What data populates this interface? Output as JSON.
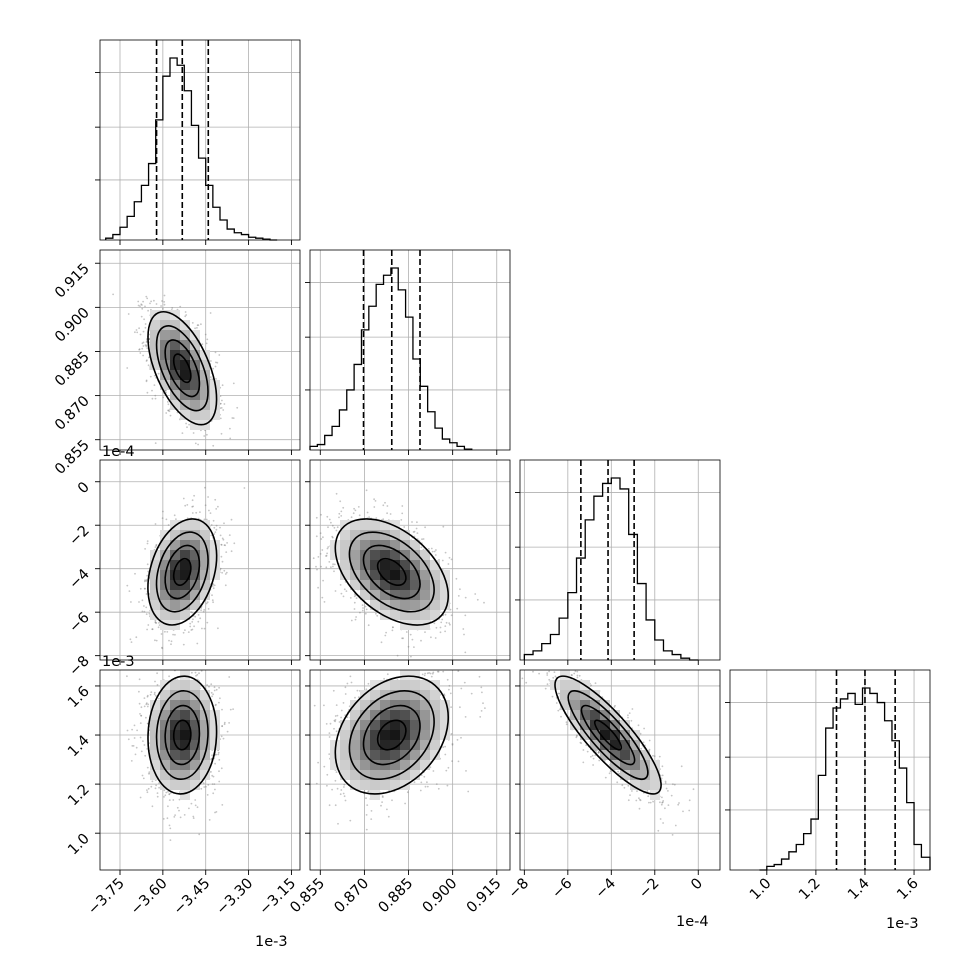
{
  "chart_data": {
    "type": "corner",
    "parameters": [
      {
        "index": 0,
        "axis_offset_text": "1e-3",
        "range": [
          -3.82,
          -3.12
        ],
        "ticks": [
          -3.75,
          -3.6,
          -3.45,
          -3.3,
          -3.15
        ],
        "tick_labels": [
          "−3.75",
          "−3.60",
          "−3.45",
          "−3.30",
          "−3.15"
        ],
        "quantiles": [
          -3.622,
          -3.532,
          -3.441
        ],
        "histogram": {
          "bin_edges": [
            -3.8,
            -3.775,
            -3.75,
            -3.725,
            -3.7,
            -3.675,
            -3.65,
            -3.625,
            -3.6,
            -3.575,
            -3.55,
            -3.525,
            -3.5,
            -3.475,
            -3.45,
            -3.425,
            -3.4,
            -3.375,
            -3.35,
            -3.325,
            -3.3,
            -3.275,
            -3.25,
            -3.225,
            -3.2
          ],
          "counts": [
            0.01,
            0.03,
            0.07,
            0.13,
            0.21,
            0.3,
            0.42,
            0.66,
            0.9,
            1.0,
            0.96,
            0.82,
            0.63,
            0.45,
            0.3,
            0.18,
            0.11,
            0.06,
            0.04,
            0.03,
            0.015,
            0.01,
            0.005,
            0.0
          ]
        }
      },
      {
        "index": 1,
        "axis_offset_text": "",
        "range": [
          0.8515,
          0.9195
        ],
        "ticks": [
          0.855,
          0.87,
          0.885,
          0.9,
          0.915
        ],
        "tick_labels": [
          "0.855",
          "0.870",
          "0.885",
          "0.900",
          "0.915"
        ],
        "quantiles": [
          0.8697,
          0.8793,
          0.8889
        ],
        "histogram": {
          "bin_edges": [
            0.8515,
            0.854,
            0.8565,
            0.859,
            0.8615,
            0.864,
            0.8665,
            0.869,
            0.8715,
            0.874,
            0.8765,
            0.879,
            0.8815,
            0.884,
            0.8865,
            0.889,
            0.8915,
            0.894,
            0.8965,
            0.899,
            0.9015,
            0.904,
            0.9065
          ],
          "counts": [
            0.02,
            0.03,
            0.08,
            0.13,
            0.22,
            0.33,
            0.47,
            0.66,
            0.79,
            0.91,
            0.96,
            1.0,
            0.88,
            0.73,
            0.5,
            0.35,
            0.21,
            0.12,
            0.06,
            0.04,
            0.02,
            0.005
          ]
        }
      },
      {
        "index": 2,
        "axis_offset_text": "1e-4",
        "range": [
          -8.2,
          1.0
        ],
        "ticks": [
          -8,
          -6,
          -4,
          -2,
          0
        ],
        "tick_labels": [
          "−8",
          "−6",
          "−4",
          "−2",
          "0"
        ],
        "quantiles": [
          -5.4,
          -4.15,
          -2.95
        ],
        "histogram": {
          "bin_edges": [
            -8.0,
            -7.6,
            -7.2,
            -6.8,
            -6.4,
            -6.0,
            -5.6,
            -5.2,
            -4.8,
            -4.4,
            -4.0,
            -3.6,
            -3.2,
            -2.8,
            -2.4,
            -2.0,
            -1.6,
            -1.2,
            -0.8,
            -0.4,
            0.0
          ],
          "counts": [
            0.03,
            0.05,
            0.09,
            0.14,
            0.23,
            0.37,
            0.56,
            0.77,
            0.9,
            0.97,
            1.0,
            0.94,
            0.69,
            0.42,
            0.22,
            0.11,
            0.05,
            0.03,
            0.01,
            0.0
          ]
        }
      },
      {
        "index": 3,
        "axis_offset_text": "1e-3",
        "range": [
          0.85,
          1.665
        ],
        "ticks": [
          1.0,
          1.2,
          1.4,
          1.6
        ],
        "tick_labels": [
          "1.0",
          "1.2",
          "1.4",
          "1.6"
        ],
        "quantiles": [
          1.284,
          1.4,
          1.523
        ],
        "histogram": {
          "bin_edges": [
            0.97,
            1.0,
            1.03,
            1.06,
            1.09,
            1.12,
            1.15,
            1.18,
            1.21,
            1.24,
            1.27,
            1.3,
            1.33,
            1.36,
            1.39,
            1.42,
            1.45,
            1.48,
            1.51,
            1.54,
            1.57,
            1.6,
            1.63,
            1.665
          ],
          "counts": [
            0.0,
            0.02,
            0.03,
            0.06,
            0.1,
            0.14,
            0.2,
            0.28,
            0.52,
            0.78,
            0.89,
            0.94,
            0.97,
            0.91,
            1.0,
            0.97,
            0.92,
            0.82,
            0.71,
            0.56,
            0.37,
            0.14,
            0.07
          ]
        }
      }
    ],
    "pairs": [
      {
        "row": 1,
        "col": 0,
        "mean": [
          -3.532,
          0.8793
        ],
        "std": [
          0.06,
          0.0096
        ],
        "corr": -0.55
      },
      {
        "row": 2,
        "col": 0,
        "mean": [
          -3.532,
          -4.15
        ],
        "std": [
          0.06,
          1.22
        ],
        "corr": 0.3
      },
      {
        "row": 2,
        "col": 1,
        "mean": [
          0.8793,
          -4.15
        ],
        "std": [
          0.0096,
          1.22
        ],
        "corr": -0.45
      },
      {
        "row": 3,
        "col": 0,
        "mean": [
          -3.532,
          1.4
        ],
        "std": [
          0.06,
          0.12
        ],
        "corr": 0.05
      },
      {
        "row": 3,
        "col": 1,
        "mean": [
          0.8793,
          1.4
        ],
        "std": [
          0.0096,
          0.12
        ],
        "corr": 0.3
      },
      {
        "row": 3,
        "col": 2,
        "mean": [
          -4.15,
          1.4
        ],
        "std": [
          1.22,
          0.12
        ],
        "corr": -0.85
      }
    ],
    "contour_levels_sigma": [
      0.5,
      1.0,
      1.5,
      2.0
    ],
    "grid": true
  }
}
